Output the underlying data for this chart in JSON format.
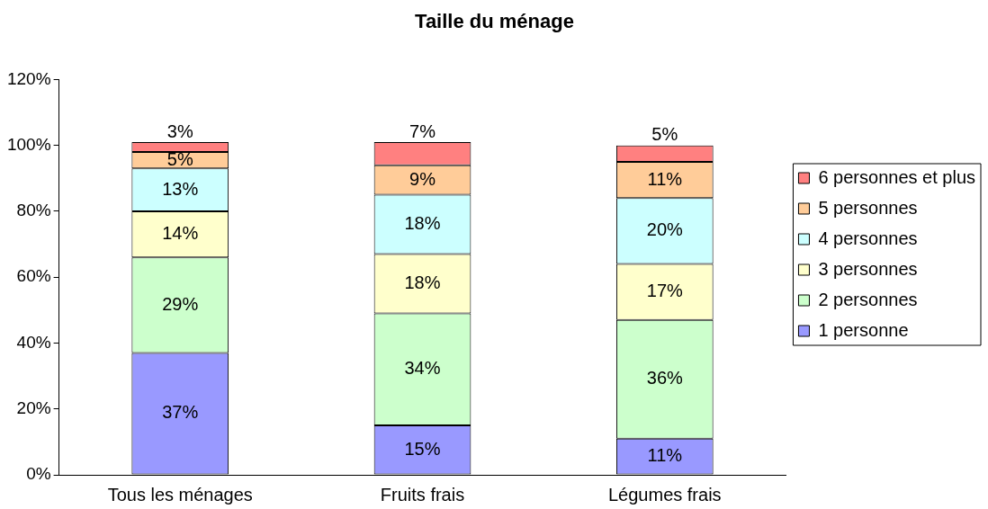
{
  "chart_data": {
    "type": "bar",
    "title": "Taille du ménage",
    "stacked": true,
    "legend": "right",
    "grid": false,
    "categories": [
      "Tous les ménages",
      "Fruits frais",
      "Légumes frais"
    ],
    "ylim": [
      0,
      120
    ],
    "yticks": [
      {
        "value": 0,
        "label": "0%"
      },
      {
        "value": 20,
        "label": "20%"
      },
      {
        "value": 40,
        "label": "40%"
      },
      {
        "value": 60,
        "label": "60%"
      },
      {
        "value": 80,
        "label": "80%"
      },
      {
        "value": 100,
        "label": "100%"
      },
      {
        "value": 120,
        "label": "120%"
      }
    ],
    "series": [
      {
        "name": "1 personne",
        "color": "#9999ff",
        "values": [
          37,
          15,
          11
        ],
        "value_labels": [
          "37%",
          "15%",
          "11%"
        ]
      },
      {
        "name": "2 personnes",
        "color": "#ccffcc",
        "values": [
          29,
          34,
          36
        ],
        "value_labels": [
          "29%",
          "34%",
          "36%"
        ]
      },
      {
        "name": "3 personnes",
        "color": "#ffffcc",
        "values": [
          14,
          18,
          17
        ],
        "value_labels": [
          "14%",
          "18%",
          "17%"
        ]
      },
      {
        "name": "4 personnes",
        "color": "#ccffff",
        "values": [
          13,
          18,
          20
        ],
        "value_labels": [
          "13%",
          "18%",
          "20%"
        ]
      },
      {
        "name": "5 personnes",
        "color": "#ffcc99",
        "values": [
          5,
          9,
          11
        ],
        "value_labels": [
          "5%",
          "9%",
          "11%"
        ]
      },
      {
        "name": "6 personnes et plus",
        "color": "#ff8080",
        "values": [
          3,
          7,
          5
        ],
        "value_labels": [
          "3%",
          "7%",
          "5%"
        ]
      }
    ]
  }
}
